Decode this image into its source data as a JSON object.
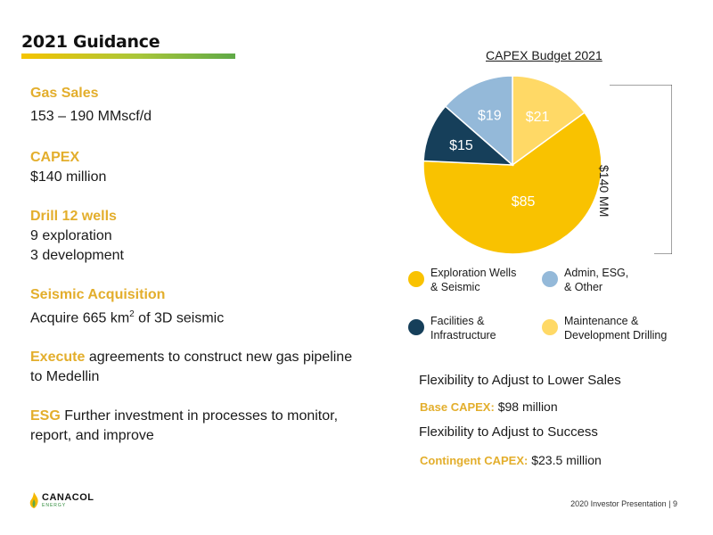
{
  "header": {
    "title": "2021 Guidance"
  },
  "left": {
    "gas_sales": {
      "heading": "Gas Sales",
      "value": "153 – 190 MMscf/d"
    },
    "capex": {
      "heading": "CAPEX",
      "value": "$140 million"
    },
    "drill": {
      "heading": "Drill 12 wells",
      "line1": "9 exploration",
      "line2": "3 development"
    },
    "seismic": {
      "heading": "Seismic Acquisition",
      "value_pre": "Acquire 665 km",
      "value_sup": "2",
      "value_post": " of 3D seismic"
    },
    "execute": {
      "lead": "Execute",
      "text": " agreements to construct new gas pipeline",
      "text2": "to Medellin"
    },
    "esg": {
      "lead": "ESG",
      "text": " Further investment in processes to monitor,",
      "text2": "report, and improve"
    }
  },
  "chart_data": {
    "type": "pie",
    "title": "CAPEX Budget 2021",
    "total_label": "$140 MM",
    "slices": [
      {
        "name": "Exploration Wells & Seismic",
        "value": 85,
        "label": "$85",
        "color": "#f9c200"
      },
      {
        "name": "Facilities & Infrastructure",
        "value": 15,
        "label": "$15",
        "color": "#163f5a"
      },
      {
        "name": "Admin, ESG, & Other",
        "value": 19,
        "label": "$19",
        "color": "#94b9d9"
      },
      {
        "name": "Maintenance & Development Drilling",
        "value": 21,
        "label": "$21",
        "color": "#ffd966"
      }
    ],
    "legend": [
      {
        "line1": "Exploration Wells",
        "line2": "& Seismic",
        "color": "#f9c200"
      },
      {
        "line1": "Admin, ESG,",
        "line2": "& Other",
        "color": "#94b9d9"
      },
      {
        "line1": "Facilities &",
        "line2": "Infrastructure",
        "color": "#163f5a"
      },
      {
        "line1": "Maintenance &",
        "line2": "Development Drilling",
        "color": "#ffd966"
      }
    ]
  },
  "flex": {
    "lower": "Flexibility to Adjust to Lower Sales",
    "base_label": "Base CAPEX:",
    "base_value": " $98 million",
    "success": "Flexibility to Adjust to Success",
    "contingent_label": "Contingent CAPEX:",
    "contingent_value": " $23.5 million"
  },
  "footer": {
    "logo_text": "CANACOL",
    "logo_sub": "ENERGY",
    "page": "2020 Investor Presentation | 9"
  }
}
